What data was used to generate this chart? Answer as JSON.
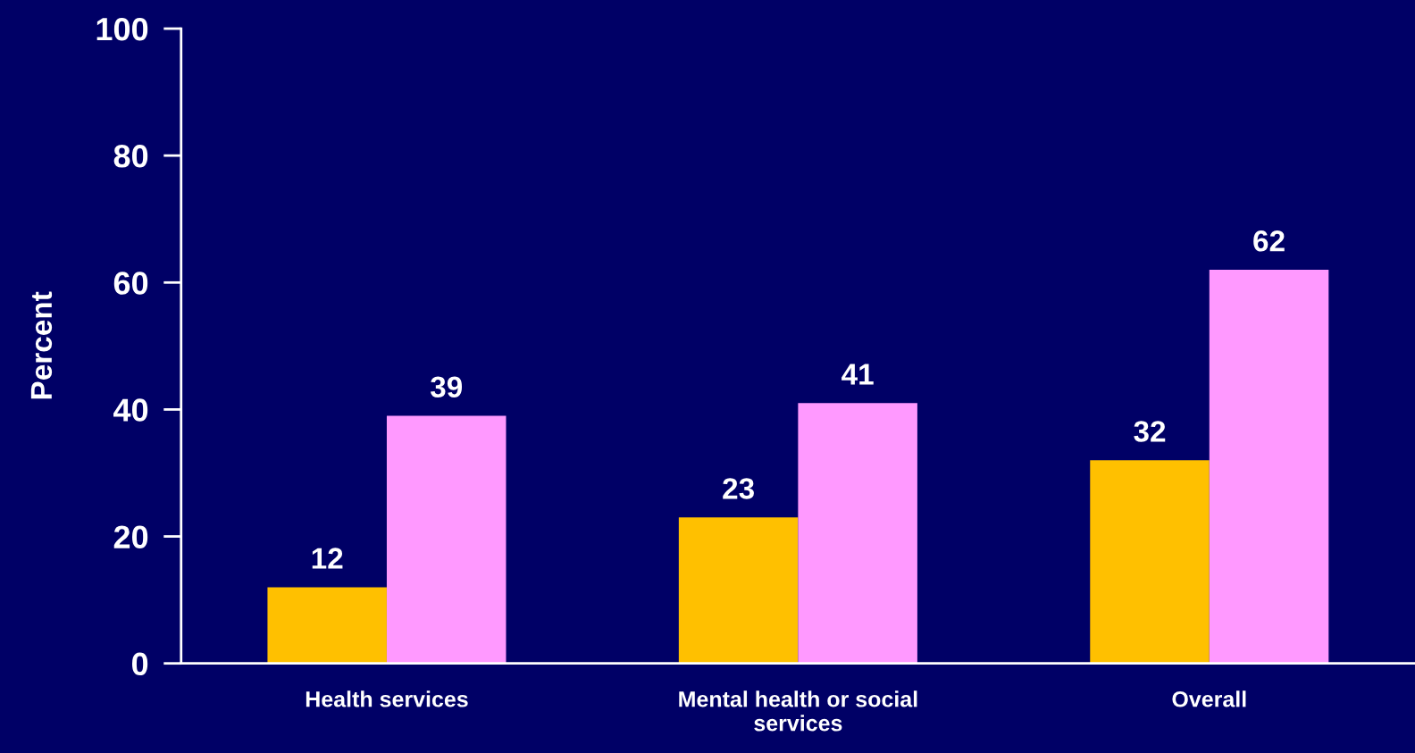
{
  "chart_data": {
    "type": "bar",
    "ylabel": "Percent",
    "categories": [
      "Health services",
      "Mental health or social\nservices",
      "Overall"
    ],
    "series": [
      {
        "color": "#ffc000",
        "values": [
          12,
          23,
          32
        ]
      },
      {
        "color": "#ff99ff",
        "values": [
          39,
          41,
          62
        ]
      }
    ],
    "ylim": [
      0,
      100
    ],
    "yticks": [
      0,
      20,
      40,
      60,
      80,
      100
    ],
    "data_labels": true,
    "grid": false,
    "legend": false
  }
}
